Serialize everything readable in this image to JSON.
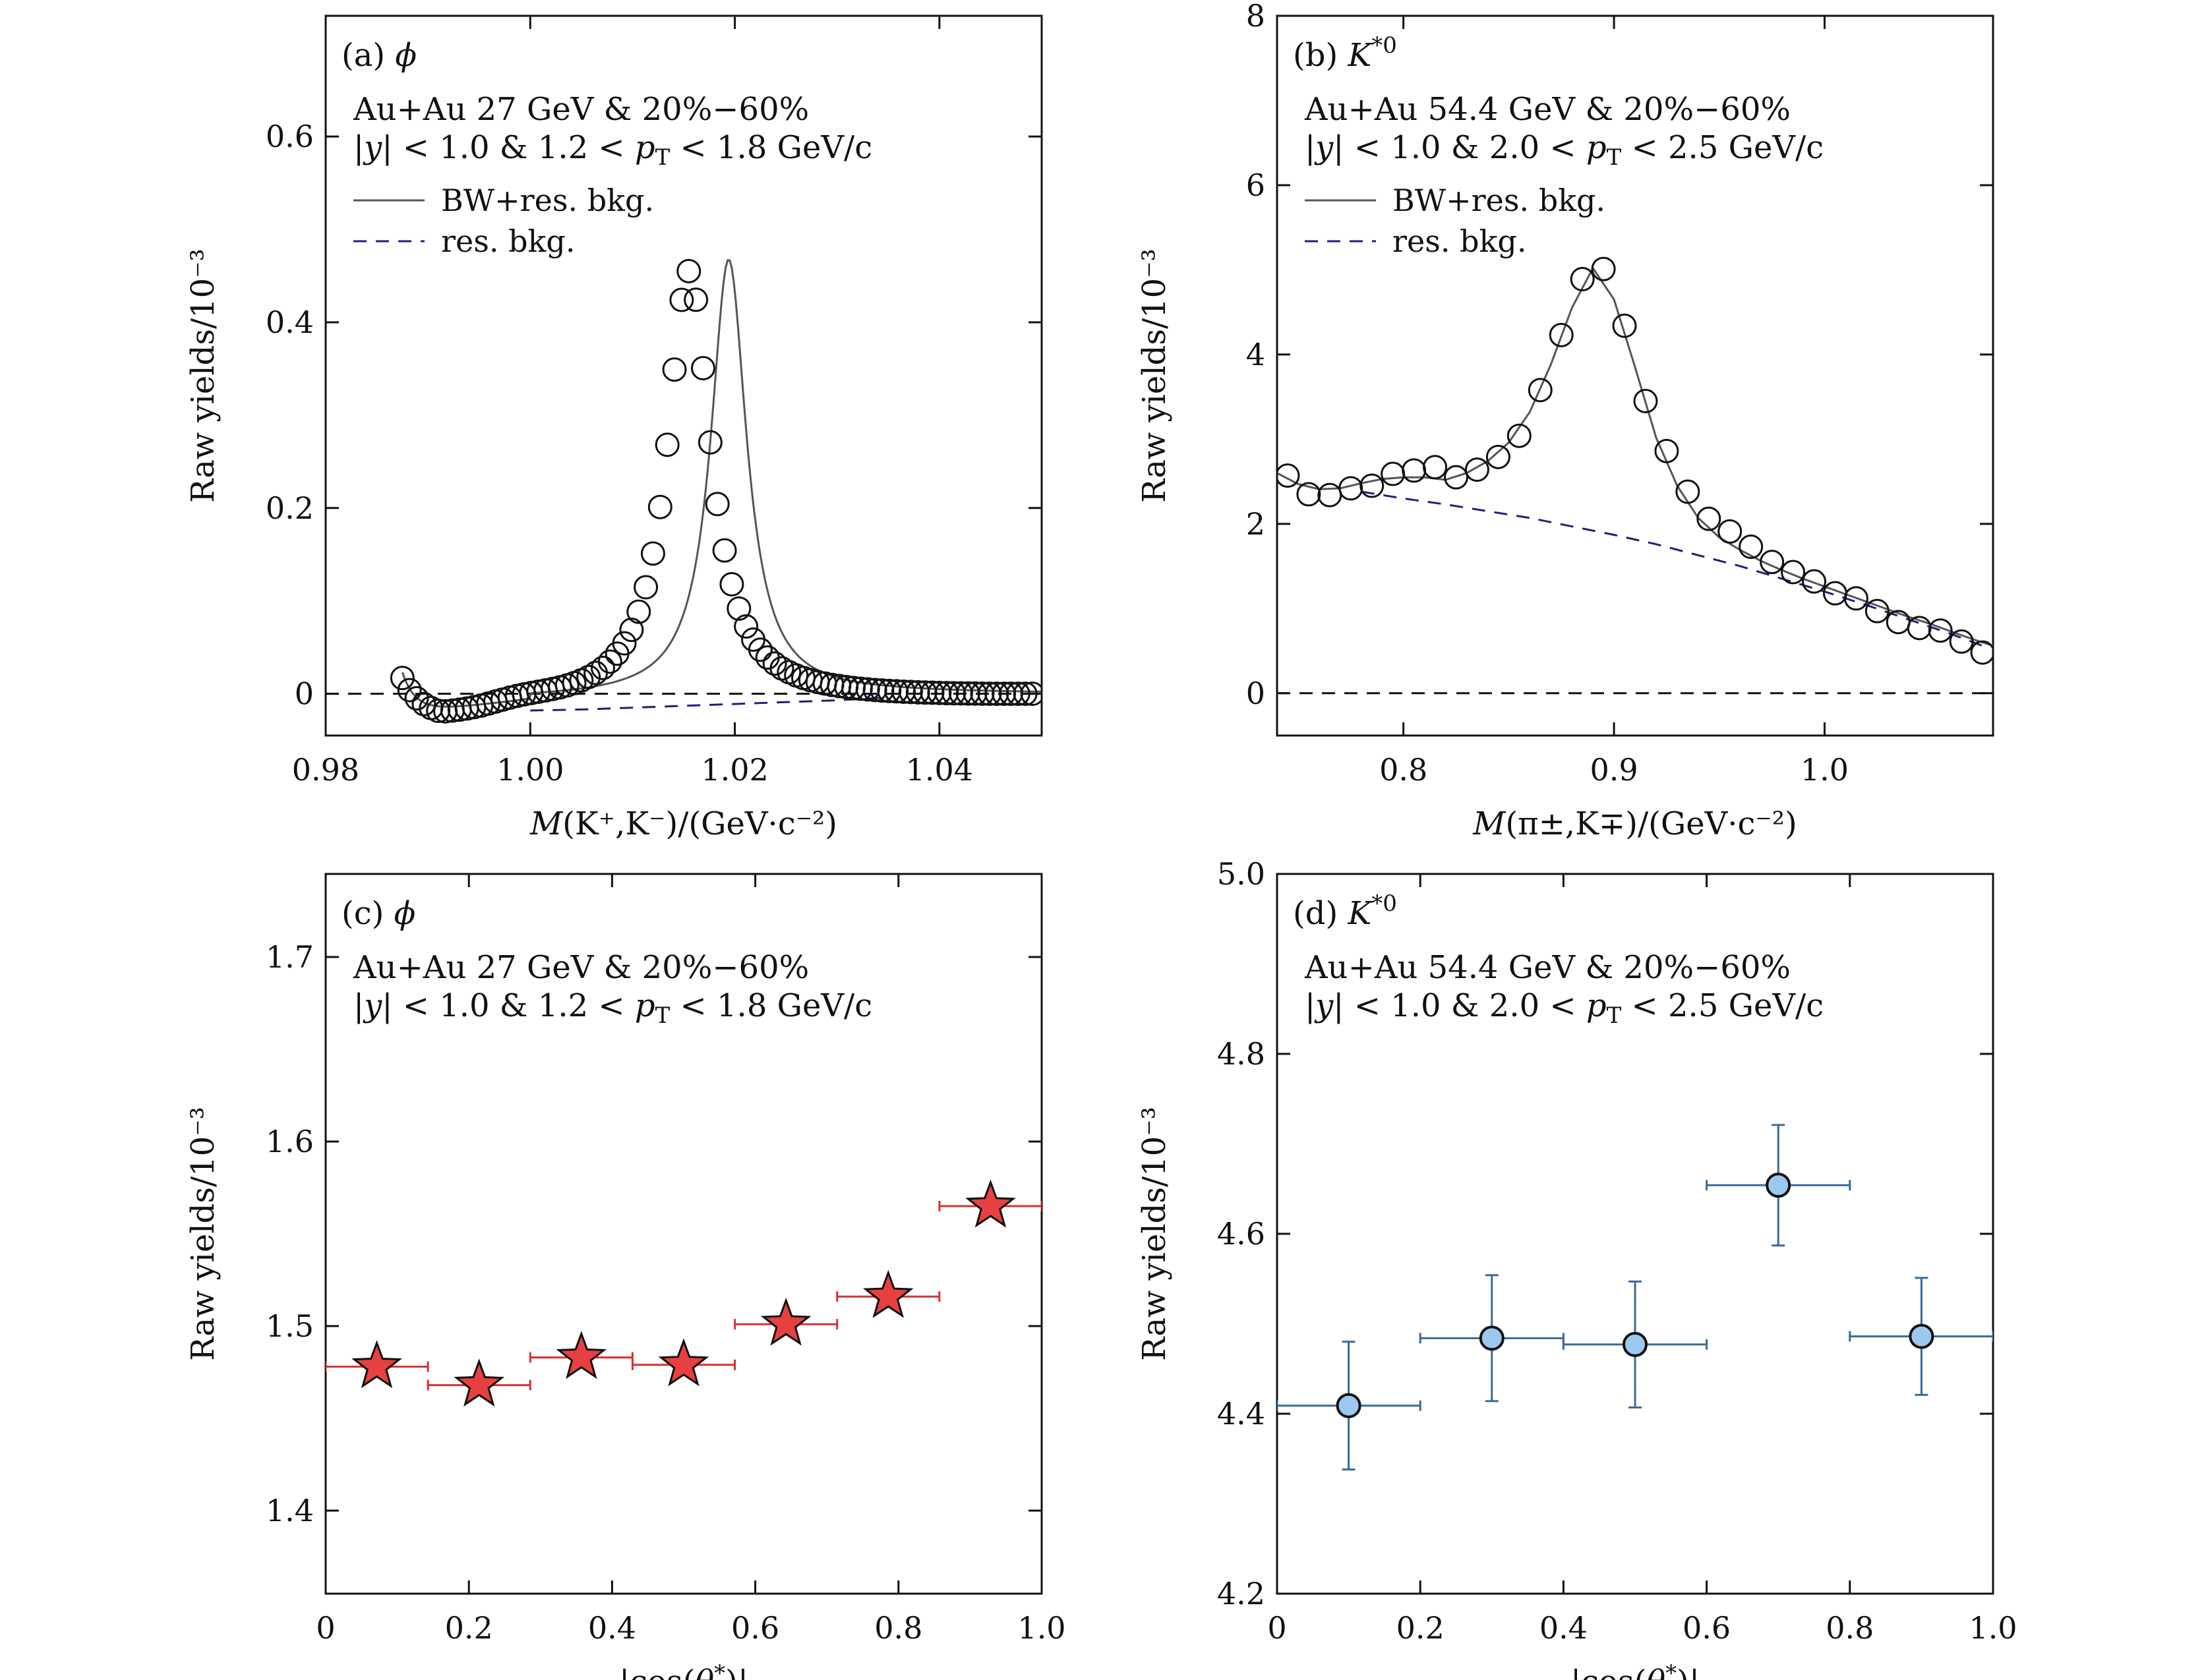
{
  "chart_data": [
    {
      "type": "scatter",
      "panel": "a",
      "label": "(a) ϕ",
      "annotation": [
        "Au+Au 27 GeV & 20%−60%",
        "|y| < 1.0 & 1.2 < pT < 1.8 GeV/c"
      ],
      "legend": [
        {
          "label": "BW+res. bkg.",
          "style": "solid",
          "color": "#555555"
        },
        {
          "label": "res. bkg.",
          "style": "dashed",
          "color": "#1f1f7a"
        }
      ],
      "legend_placement": "top-left",
      "xlabel": "M(K⁺,K⁻)/(GeV·c⁻²)",
      "ylabel": "Raw yields/10⁻³",
      "xlim": [
        0.98,
        1.05
      ],
      "ylim": [
        -0.045,
        0.73
      ],
      "xticks": [
        0.98,
        1.0,
        1.02,
        1.04
      ],
      "xtick_labels": [
        "0.98",
        "1.00",
        "1.02",
        "1.04"
      ],
      "yticks": [
        0,
        0.2,
        0.4,
        0.6
      ],
      "ytick_labels": [
        "0",
        "0.2",
        "0.4",
        "0.6"
      ],
      "zero_line": true,
      "peak": {
        "mass": 1.0194,
        "width": 0.00426,
        "height": 0.47
      },
      "points": {
        "x": [
          0.9875,
          0.9882,
          0.9889,
          0.9896,
          0.9903,
          0.991,
          0.9917,
          0.9924,
          0.9931,
          0.9938,
          0.9945,
          0.9952,
          0.9959,
          0.9966,
          0.9973,
          0.998,
          0.9987,
          0.9994,
          1.0001,
          1.0008,
          1.0015,
          1.0022,
          1.0029,
          1.0036,
          1.0043,
          1.005,
          1.0057,
          1.0064,
          1.0071,
          1.0078,
          1.0085,
          1.0092,
          1.0099,
          1.0106,
          1.0113,
          1.012,
          1.0127,
          1.0134,
          1.0141,
          1.0148,
          1.0155,
          1.0162,
          1.0169,
          1.0176,
          1.0183,
          1.019,
          1.0197,
          1.0204,
          1.0211,
          1.0218,
          1.0225,
          1.0232,
          1.0239,
          1.0246,
          1.0253,
          1.026,
          1.0267,
          1.0274,
          1.0281,
          1.0288,
          1.0295,
          1.0302,
          1.0309,
          1.0316,
          1.0323,
          1.033,
          1.0337,
          1.0344,
          1.0351,
          1.0358,
          1.0365,
          1.0372,
          1.0379,
          1.0386,
          1.0393,
          1.04,
          1.0407,
          1.0414,
          1.0421,
          1.0428,
          1.0435,
          1.0442,
          1.0449,
          1.0456,
          1.0463,
          1.047,
          1.0477,
          1.0484,
          1.0491
        ],
        "y": [
          0.017,
          0.0039,
          -0.0049,
          -0.0111,
          -0.0154,
          -0.0184,
          -0.0189,
          -0.0181,
          -0.0171,
          -0.0159,
          -0.0144,
          -0.0127,
          -0.0106,
          -0.0084,
          -0.0063,
          -0.0042,
          -0.0023,
          -0.0006,
          0.0008,
          0.0022,
          0.0036,
          0.0052,
          0.0069,
          0.009,
          0.0115,
          0.0144,
          0.018,
          0.0224,
          0.0278,
          0.0346,
          0.0432,
          0.0543,
          0.0688,
          0.0883,
          0.1147,
          0.151,
          0.2011,
          0.2681,
          0.3491,
          0.4241,
          0.4551,
          0.4243,
          0.3506,
          0.2707,
          0.2043,
          0.1543,
          0.1179,
          0.0917,
          0.0725,
          0.0583,
          0.0474,
          0.039,
          0.0325,
          0.0273,
          0.0232,
          0.0198,
          0.017,
          0.0146,
          0.0126,
          0.011,
          0.0095,
          0.0083,
          0.0072,
          0.0062,
          0.0054,
          0.0047,
          0.004,
          0.0035,
          0.003,
          0.0026,
          0.0022,
          0.0019,
          0.0016,
          0.0013,
          0.0011,
          0.0009,
          0.0007,
          0.0005,
          0.0004,
          0.0003,
          0.0002,
          0.0001,
          0.0,
          0.0,
          0.0,
          0.0,
          0.0,
          0.0,
          0.0
        ],
        "marker": "open-circle"
      },
      "curves": [
        {
          "name": "BW+res. bkg.",
          "style": "solid",
          "color": "#555555",
          "x": [
            0.9875,
            0.988,
            0.9885,
            0.989,
            0.9895,
            0.99,
            0.9905,
            0.991,
            0.9915,
            0.992,
            0.9925,
            0.993,
            0.9935,
            0.994,
            0.9945,
            0.995,
            0.9955,
            0.996,
            0.9965,
            0.997,
            0.9975,
            0.998,
            0.9985,
            0.999,
            0.9995,
            1.0,
            1.0005,
            1.001,
            1.0015,
            1.002,
            1.0025,
            1.003,
            1.0035,
            1.004,
            1.0045,
            1.005,
            1.0055,
            1.006,
            1.0065,
            1.007,
            1.0075,
            1.008,
            1.0085,
            1.009,
            1.0095,
            1.01,
            1.0105,
            1.011,
            1.0115,
            1.012,
            1.0125,
            1.013,
            1.0135,
            1.014,
            1.0145,
            1.015,
            1.0155,
            1.016,
            1.0165,
            1.017,
            1.0175,
            1.018,
            1.0185,
            1.019,
            1.0195,
            1.02,
            1.0205,
            1.021,
            1.0215,
            1.022,
            1.0225,
            1.023,
            1.0235,
            1.024,
            1.0245,
            1.025,
            1.0255,
            1.026,
            1.0265,
            1.027,
            1.0275,
            1.028,
            1.0285,
            1.029,
            1.0295,
            1.03,
            1.0305,
            1.031,
            1.0315,
            1.032,
            1.0325,
            1.033,
            1.0335,
            1.034,
            1.0345,
            1.035,
            1.0355,
            1.036,
            1.0365,
            1.037,
            1.0375,
            1.038,
            1.0385,
            1.039,
            1.0395,
            1.04,
            1.0405,
            1.041,
            1.0415,
            1.042,
            1.0425,
            1.043,
            1.0435,
            1.044,
            1.0445,
            1.045,
            1.0455,
            1.046,
            1.0465,
            1.047,
            1.0475,
            1.048,
            1.0485,
            1.049,
            1.0495,
            1.05
          ],
          "y": [
            0.017,
            0.0072,
            0.0,
            -0.0052,
            -0.0088,
            -0.0113,
            -0.0129,
            -0.0139,
            -0.0145,
            -0.0147,
            -0.0148,
            -0.0147,
            -0.0144,
            -0.0141,
            -0.0136,
            -0.0131,
            -0.0125,
            -0.0118,
            -0.011,
            -0.0102,
            -0.0092,
            -0.0082,
            -0.0071,
            -0.0059,
            -0.0046,
            -0.0032,
            -0.0017,
            0.0,
            0.0018,
            0.0038,
            0.0059,
            0.0083,
            0.0109,
            0.0138,
            0.017,
            0.0207,
            0.0248,
            0.0295,
            0.035,
            0.0413,
            0.0488,
            0.0578,
            0.0685,
            0.0817,
            0.098,
            0.1183,
            0.1439,
            0.1761,
            0.2156,
            0.2617,
            0.3109,
            0.356,
            0.3894,
            0.407,
            0.4101,
            0.4047,
            0.3954,
            0.3847,
            0.3736,
            0.3625,
            0.3512,
            0.3397,
            0.3278,
            0.3155,
            0.3029,
            0.2899,
            0.2767,
            0.2635,
            0.2503,
            0.2374,
            0.2249,
            0.2128,
            0.2012,
            0.1902,
            0.1799,
            0.1701,
            0.161,
            0.1524,
            0.1444,
            0.1369,
            0.13,
            0.1235,
            0.1174,
            0.1117,
            0.1064,
            0.1014,
            0.0967,
            0.0923,
            0.0882,
            0.0843,
            0.0806,
            0.0771,
            0.0738,
            0.0707,
            0.0678,
            0.065,
            0.0623,
            0.0598,
            0.0574,
            0.0552,
            0.053,
            0.051,
            0.049,
            0.0471,
            0.0454,
            0.0437,
            0.042,
            0.0405,
            0.039,
            0.0376,
            0.0363,
            0.035,
            0.0337,
            0.0325,
            0.0314,
            0.0303,
            0.0292,
            0.0282,
            0.0272,
            0.0263,
            0.0254,
            0.0245,
            0.0237,
            0.0229,
            0.0222,
            0.0214
          ]
        },
        {
          "name": "res. bkg.",
          "style": "dashed",
          "color": "#1f1f7a",
          "x": [
            1.0,
            1.005,
            1.01,
            1.015,
            1.02,
            1.025,
            1.03,
            1.035
          ],
          "y": [
            -0.018,
            -0.017,
            -0.015,
            -0.013,
            -0.011,
            -0.009,
            -0.007,
            -0.004
          ]
        }
      ]
    },
    {
      "type": "scatter",
      "panel": "b",
      "label": "(b) K*0",
      "annotation": [
        "Au+Au 54.4 GeV & 20%−60%",
        "|y| < 1.0 & 2.0 < pT < 2.5 GeV/c"
      ],
      "legend": [
        {
          "label": "BW+res. bkg.",
          "style": "solid",
          "color": "#555555"
        },
        {
          "label": "res. bkg.",
          "style": "dashed",
          "color": "#1f1f7a"
        }
      ],
      "legend_placement": "top-left",
      "xlabel": "M(π±,K∓)/(GeV·c⁻²)",
      "ylabel": "Raw yields/10⁻³",
      "xlim": [
        0.74,
        1.08
      ],
      "ylim": [
        -0.5,
        8.0
      ],
      "xticks": [
        0.8,
        0.9,
        1.0
      ],
      "xtick_labels": [
        "0.8",
        "0.9",
        "1.0"
      ],
      "yticks": [
        0,
        2,
        4,
        6,
        8
      ],
      "ytick_labels": [
        "0",
        "2",
        "4",
        "6",
        "8"
      ],
      "zero_line": true,
      "points": {
        "x": [
          0.745,
          0.755,
          0.765,
          0.775,
          0.785,
          0.795,
          0.805,
          0.815,
          0.825,
          0.835,
          0.845,
          0.855,
          0.865,
          0.875,
          0.885,
          0.895,
          0.905,
          0.915,
          0.925,
          0.935,
          0.945,
          0.955,
          0.965,
          0.975,
          0.985,
          0.995,
          1.005,
          1.015,
          1.025,
          1.035,
          1.045,
          1.055,
          1.065,
          1.075
        ],
        "y": [
          2.57,
          2.35,
          2.34,
          2.42,
          2.45,
          2.59,
          2.63,
          2.67,
          2.55,
          2.64,
          2.79,
          3.04,
          3.58,
          4.23,
          4.89,
          5.01,
          4.34,
          3.45,
          2.86,
          2.38,
          2.06,
          1.91,
          1.73,
          1.55,
          1.43,
          1.32,
          1.18,
          1.12,
          0.97,
          0.84,
          0.77,
          0.74,
          0.61,
          0.48
        ],
        "marker": "open-circle"
      },
      "curves": [
        {
          "name": "BW+res. bkg.",
          "style": "solid",
          "color": "#555555",
          "x": [
            0.74,
            0.75,
            0.76,
            0.77,
            0.78,
            0.79,
            0.8,
            0.81,
            0.82,
            0.83,
            0.84,
            0.85,
            0.86,
            0.87,
            0.88,
            0.89,
            0.9,
            0.91,
            0.92,
            0.93,
            0.94,
            0.95,
            0.96,
            0.97,
            0.98,
            0.99,
            1.0,
            1.01,
            1.02,
            1.03,
            1.04,
            1.05,
            1.06,
            1.07,
            1.08
          ],
          "y": [
            2.6,
            2.47,
            2.41,
            2.42,
            2.48,
            2.53,
            2.55,
            2.55,
            2.52,
            2.6,
            2.74,
            2.96,
            3.32,
            3.88,
            4.55,
            5.02,
            4.65,
            3.85,
            3.02,
            2.45,
            2.07,
            1.84,
            1.69,
            1.56,
            1.45,
            1.35,
            1.26,
            1.17,
            1.08,
            0.99,
            0.9,
            0.82,
            0.73,
            0.64,
            0.56
          ]
        },
        {
          "name": "res. bkg.",
          "style": "dashed",
          "color": "#1f1f7a",
          "x": [
            0.78,
            0.8,
            0.82,
            0.84,
            0.86,
            0.88,
            0.9,
            0.92,
            0.94,
            0.96,
            0.98,
            1.0,
            1.02,
            1.04,
            1.06,
            1.075
          ],
          "y": [
            2.38,
            2.3,
            2.23,
            2.15,
            2.07,
            1.97,
            1.87,
            1.76,
            1.63,
            1.5,
            1.35,
            1.2,
            1.04,
            0.87,
            0.7,
            0.56
          ]
        }
      ]
    },
    {
      "type": "scatter",
      "panel": "c",
      "label": "(c) ϕ",
      "annotation": [
        "Au+Au 27 GeV & 20%−60%",
        "|y| < 1.0 & 1.2 < pT < 1.8 GeV/c"
      ],
      "xlabel": "|cos(θ*)|",
      "ylabel": "Raw yields/10⁻³",
      "xlim": [
        0.0,
        1.0
      ],
      "ylim": [
        1.355,
        1.745
      ],
      "xticks": [
        0,
        0.2,
        0.4,
        0.6,
        0.8,
        1.0
      ],
      "xtick_labels": [
        "0",
        "0.2",
        "0.4",
        "0.6",
        "0.8",
        "1.0"
      ],
      "yticks": [
        1.4,
        1.5,
        1.6,
        1.7
      ],
      "ytick_labels": [
        "1.4",
        "1.5",
        "1.6",
        "1.7"
      ],
      "marker": "red-star",
      "marker_color": "#e84040",
      "errorbar_color": "#d83030",
      "points": {
        "x": [
          0.0714,
          0.2143,
          0.3571,
          0.5,
          0.6429,
          0.7857,
          0.9286
        ],
        "xerr": [
          0.0714,
          0.0714,
          0.0714,
          0.0714,
          0.0714,
          0.0714,
          0.0714
        ],
        "y": [
          1.478,
          1.468,
          1.483,
          1.479,
          1.501,
          1.516,
          1.565
        ]
      }
    },
    {
      "type": "scatter",
      "panel": "d",
      "label": "(d) K*0",
      "annotation": [
        "Au+Au 54.4 GeV & 20%−60%",
        "|y| < 1.0 & 2.0 < pT < 2.5 GeV/c"
      ],
      "xlabel": "|cos(θ*)|",
      "ylabel": "Raw yields/10⁻³",
      "xlim": [
        0.0,
        1.0
      ],
      "ylim": [
        4.2,
        5.0
      ],
      "xticks": [
        0,
        0.2,
        0.4,
        0.6,
        0.8,
        1.0
      ],
      "xtick_labels": [
        "0",
        "0.2",
        "0.4",
        "0.6",
        "0.8",
        "1.0"
      ],
      "yticks": [
        4.2,
        4.4,
        4.6,
        4.8,
        5.0
      ],
      "ytick_labels": [
        "4.2",
        "4.4",
        "4.6",
        "4.8",
        "5.0"
      ],
      "marker": "blue-circle",
      "marker_color": "#9cc8f0",
      "errorbar_color": "#3a6a9a",
      "points": {
        "x": [
          0.1,
          0.3,
          0.5,
          0.7,
          0.9
        ],
        "xerr": [
          0.1,
          0.1,
          0.1,
          0.1,
          0.1
        ],
        "y": [
          4.409,
          4.484,
          4.477,
          4.654,
          4.486
        ],
        "yerr": [
          0.071,
          0.07,
          0.07,
          0.067,
          0.065
        ]
      }
    }
  ]
}
